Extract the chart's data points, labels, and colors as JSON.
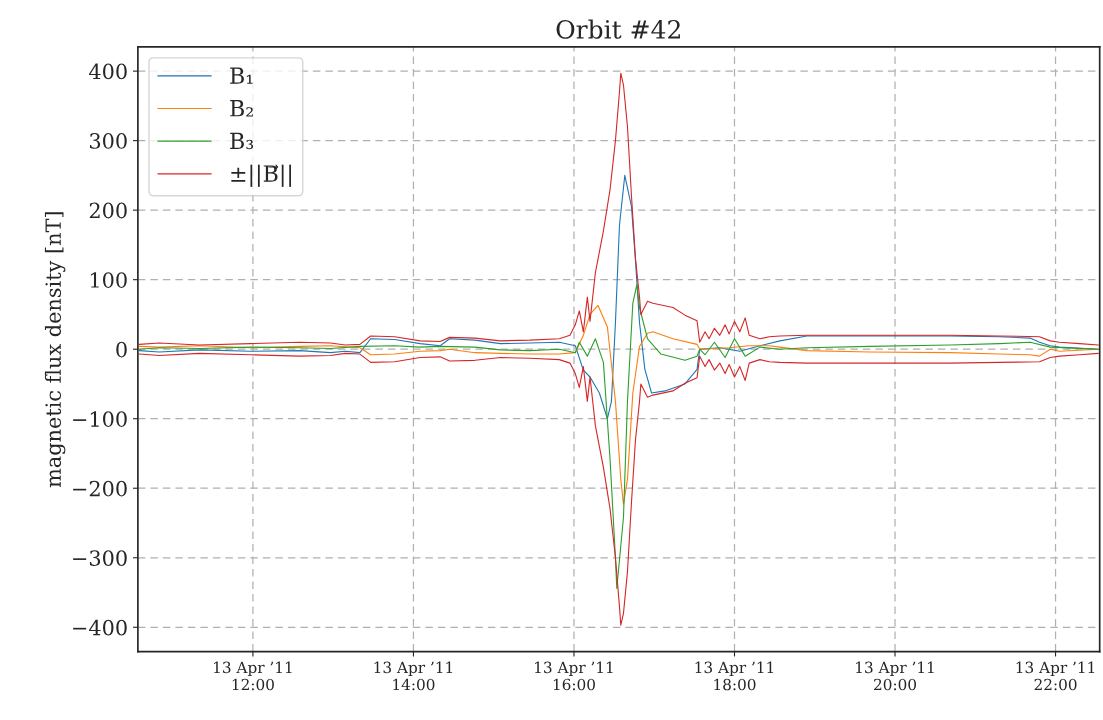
{
  "chart_data": {
    "type": "line",
    "title": "Orbit #42",
    "ylabel": "magnetic flux density [nT]",
    "xlim": [
      "2011-04-13T10:34",
      "2011-04-13T22:33"
    ],
    "ylim": [
      -435,
      435
    ],
    "xticks": [
      {
        "value": "2011-04-13T12:00",
        "label": "13 Apr ’11\n12:00"
      },
      {
        "value": "2011-04-13T14:00",
        "label": "13 Apr ’11\n14:00"
      },
      {
        "value": "2011-04-13T16:00",
        "label": "13 Apr ’11\n16:00"
      },
      {
        "value": "2011-04-13T18:00",
        "label": "13 Apr ’11\n18:00"
      },
      {
        "value": "2011-04-13T20:00",
        "label": "13 Apr ’11\n20:00"
      },
      {
        "value": "2011-04-13T22:00",
        "label": "13 Apr ’11\n22:00"
      }
    ],
    "yticks": [
      {
        "value": -400,
        "label": "−400"
      },
      {
        "value": -300,
        "label": "−300"
      },
      {
        "value": -200,
        "label": "−200"
      },
      {
        "value": -100,
        "label": "−100"
      },
      0,
      100,
      200,
      300,
      400
    ],
    "grid": true,
    "legend": "top left",
    "line_style": "solid",
    "series": [
      {
        "name": "B₁",
        "color": "#1f77b4",
        "x": [
          "2011-04-13T10:35",
          "2011-04-13T10:50",
          "2011-04-13T11:20",
          "2011-04-13T11:58",
          "2011-04-13T12:35",
          "2011-04-13T12:58",
          "2011-04-13T13:09",
          "2011-04-13T13:20",
          "2011-04-13T13:28",
          "2011-04-13T13:46",
          "2011-04-13T14:05",
          "2011-04-13T14:20",
          "2011-04-13T14:27",
          "2011-04-13T14:46",
          "2011-04-13T15:05",
          "2011-04-13T15:27",
          "2011-04-13T15:49",
          "2011-04-13T16:01",
          "2011-04-13T16:07",
          "2011-04-13T16:12",
          "2011-04-13T16:19",
          "2011-04-13T16:25",
          "2011-04-13T16:28",
          "2011-04-13T16:31",
          "2011-04-13T16:34",
          "2011-04-13T16:38",
          "2011-04-13T16:43",
          "2011-04-13T16:46",
          "2011-04-13T16:49",
          "2011-04-13T16:53",
          "2011-04-13T16:58",
          "2011-04-13T17:08",
          "2011-04-13T17:23",
          "2011-04-13T17:32",
          "2011-04-13T17:34",
          "2011-04-13T17:49",
          "2011-04-13T18:04",
          "2011-04-13T18:19",
          "2011-04-13T18:34",
          "2011-04-13T18:54",
          "2011-04-13T19:41",
          "2011-04-13T20:41",
          "2011-04-13T21:18",
          "2011-04-13T21:41",
          "2011-04-13T21:48",
          "2011-04-13T21:56",
          "2011-04-13T22:03",
          "2011-04-13T22:32"
        ],
        "values": [
          -2,
          -4,
          -1,
          -3,
          -2,
          -5,
          -3,
          -5,
          15,
          14,
          8,
          5,
          15,
          13,
          8,
          9,
          10,
          5,
          -30,
          -40,
          -63,
          -100,
          -75,
          38,
          178,
          250,
          205,
          127,
          38,
          -29,
          -63,
          -60,
          -50,
          -29,
          0,
          2,
          -3,
          5,
          12,
          19,
          19,
          19,
          18,
          16,
          10,
          5,
          3,
          0
        ]
      },
      {
        "name": "B₂",
        "color": "#ff7f0e",
        "x": [
          "2011-04-13T10:35",
          "2011-04-13T10:50",
          "2011-04-13T11:20",
          "2011-04-13T11:58",
          "2011-04-13T12:35",
          "2011-04-13T12:58",
          "2011-04-13T13:20",
          "2011-04-13T13:28",
          "2011-04-13T13:46",
          "2011-04-13T14:05",
          "2011-04-13T14:20",
          "2011-04-13T14:27",
          "2011-04-13T14:46",
          "2011-04-13T15:05",
          "2011-04-13T15:27",
          "2011-04-13T15:49",
          "2011-04-13T16:01",
          "2011-04-13T16:07",
          "2011-04-13T16:12",
          "2011-04-13T16:18",
          "2011-04-13T16:25",
          "2011-04-13T16:31",
          "2011-04-13T16:35",
          "2011-04-13T16:37",
          "2011-04-13T16:40",
          "2011-04-13T16:44",
          "2011-04-13T16:49",
          "2011-04-13T16:55",
          "2011-04-13T16:59",
          "2011-04-13T17:14",
          "2011-04-13T17:32",
          "2011-04-13T17:34",
          "2011-04-13T17:56",
          "2011-04-13T18:11",
          "2011-04-13T18:26",
          "2011-04-13T18:34",
          "2011-04-13T18:54",
          "2011-04-13T19:41",
          "2011-04-13T20:41",
          "2011-04-13T21:18",
          "2011-04-13T21:41",
          "2011-04-13T21:48",
          "2011-04-13T21:56",
          "2011-04-13T22:03",
          "2011-04-13T22:32"
        ],
        "values": [
          4,
          3,
          5,
          2,
          4,
          5,
          2,
          -8,
          -7,
          -3,
          -2,
          0,
          -5,
          -6,
          -7,
          -7,
          -5,
          20,
          50,
          63,
          32,
          -75,
          -187,
          -223,
          -187,
          -63,
          4,
          23,
          25,
          15,
          7,
          0,
          2,
          5,
          5,
          3,
          -2,
          -4,
          -5,
          -7,
          -8,
          -10,
          0,
          -3,
          0
        ]
      },
      {
        "name": "B₃",
        "color": "#2ca02c",
        "x": [
          "2011-04-13T10:35",
          "2011-04-13T10:50",
          "2011-04-13T11:20",
          "2011-04-13T11:58",
          "2011-04-13T12:35",
          "2011-04-13T12:58",
          "2011-04-13T13:20",
          "2011-04-13T13:46",
          "2011-04-13T14:05",
          "2011-04-13T14:20",
          "2011-04-13T14:46",
          "2011-04-13T15:05",
          "2011-04-13T15:27",
          "2011-04-13T15:49",
          "2011-04-13T16:01",
          "2011-04-13T16:04",
          "2011-04-13T16:10",
          "2011-04-13T16:16",
          "2011-04-13T16:22",
          "2011-04-13T16:27",
          "2011-04-13T16:31",
          "2011-04-13T16:32",
          "2011-04-13T16:37",
          "2011-04-13T16:40",
          "2011-04-13T16:44",
          "2011-04-13T16:47",
          "2011-04-13T16:49",
          "2011-04-13T16:55",
          "2011-04-13T17:05",
          "2011-04-13T17:23",
          "2011-04-13T17:32",
          "2011-04-13T17:34",
          "2011-04-13T17:38",
          "2011-04-13T17:45",
          "2011-04-13T17:53",
          "2011-04-13T18:00",
          "2011-04-13T18:08",
          "2011-04-13T18:19",
          "2011-04-13T18:34",
          "2011-04-13T18:54",
          "2011-04-13T19:41",
          "2011-04-13T20:41",
          "2011-04-13T21:18",
          "2011-04-13T21:41",
          "2011-04-13T21:56",
          "2011-04-13T22:32"
        ],
        "values": [
          0,
          2,
          1,
          3,
          2,
          1,
          4,
          5,
          3,
          4,
          3,
          -1,
          -2,
          0,
          -5,
          10,
          -10,
          15,
          -19,
          -159,
          -300,
          -344,
          -242,
          -75,
          66,
          93,
          60,
          15,
          -7,
          -16,
          -10,
          0,
          -8,
          10,
          -12,
          15,
          -10,
          3,
          0,
          2,
          4,
          6,
          8,
          10,
          3,
          0
        ]
      },
      {
        "name": "±||B⃗||",
        "color": "#d62728",
        "x": [
          "2011-04-13T10:35",
          "2011-04-13T10:50",
          "2011-04-13T11:20",
          "2011-04-13T11:58",
          "2011-04-13T12:35",
          "2011-04-13T12:58",
          "2011-04-13T13:09",
          "2011-04-13T13:20",
          "2011-04-13T13:28",
          "2011-04-13T13:46",
          "2011-04-13T14:05",
          "2011-04-13T14:20",
          "2011-04-13T14:27",
          "2011-04-13T14:46",
          "2011-04-13T15:05",
          "2011-04-13T15:27",
          "2011-04-13T15:49",
          "2011-04-13T15:57",
          "2011-04-13T16:01",
          "2011-04-13T16:04",
          "2011-04-13T16:07",
          "2011-04-13T16:10",
          "2011-04-13T16:12",
          "2011-04-13T16:16",
          "2011-04-13T16:18",
          "2011-04-13T16:22",
          "2011-04-13T16:27",
          "2011-04-13T16:31",
          "2011-04-13T16:34",
          "2011-04-13T16:35",
          "2011-04-13T16:37",
          "2011-04-13T16:40",
          "2011-04-13T16:43",
          "2011-04-13T16:46",
          "2011-04-13T16:49",
          "2011-04-13T16:50",
          "2011-04-13T16:55",
          "2011-04-13T16:59",
          "2011-04-13T17:14",
          "2011-04-13T17:23",
          "2011-04-13T17:32",
          "2011-04-13T17:34",
          "2011-04-13T17:38",
          "2011-04-13T17:41",
          "2011-04-13T17:45",
          "2011-04-13T17:49",
          "2011-04-13T17:53",
          "2011-04-13T17:56",
          "2011-04-13T18:00",
          "2011-04-13T18:04",
          "2011-04-13T18:08",
          "2011-04-13T18:11",
          "2011-04-13T18:19",
          "2011-04-13T18:26",
          "2011-04-13T18:34",
          "2011-04-13T18:54",
          "2011-04-13T19:41",
          "2011-04-13T20:41",
          "2011-04-13T21:18",
          "2011-04-13T21:48",
          "2011-04-13T21:56",
          "2011-04-13T22:03",
          "2011-04-13T22:18",
          "2011-04-13T22:32"
        ],
        "values": [
          7,
          9,
          6,
          8,
          10,
          9,
          6,
          7,
          19,
          18,
          12,
          11,
          17,
          16,
          12,
          13,
          15,
          20,
          35,
          55,
          25,
          75,
          40,
          110,
          130,
          170,
          230,
          300,
          370,
          397,
          380,
          320,
          220,
          130,
          75,
          50,
          69,
          66,
          60,
          49,
          41,
          10,
          25,
          15,
          30,
          20,
          35,
          22,
          40,
          25,
          45,
          20,
          15,
          18,
          19,
          20,
          20,
          20,
          19,
          18,
          12,
          10,
          8,
          6
        ]
      },
      {
        "color": "#d62728",
        "x": [
          "2011-04-13T10:35",
          "2011-04-13T10:50",
          "2011-04-13T11:20",
          "2011-04-13T11:58",
          "2011-04-13T12:35",
          "2011-04-13T12:58",
          "2011-04-13T13:09",
          "2011-04-13T13:20",
          "2011-04-13T13:28",
          "2011-04-13T13:46",
          "2011-04-13T14:05",
          "2011-04-13T14:20",
          "2011-04-13T14:27",
          "2011-04-13T14:46",
          "2011-04-13T15:05",
          "2011-04-13T15:27",
          "2011-04-13T15:49",
          "2011-04-13T15:57",
          "2011-04-13T16:01",
          "2011-04-13T16:04",
          "2011-04-13T16:07",
          "2011-04-13T16:10",
          "2011-04-13T16:12",
          "2011-04-13T16:16",
          "2011-04-13T16:18",
          "2011-04-13T16:22",
          "2011-04-13T16:27",
          "2011-04-13T16:31",
          "2011-04-13T16:34",
          "2011-04-13T16:35",
          "2011-04-13T16:37",
          "2011-04-13T16:40",
          "2011-04-13T16:43",
          "2011-04-13T16:46",
          "2011-04-13T16:49",
          "2011-04-13T16:50",
          "2011-04-13T16:55",
          "2011-04-13T16:59",
          "2011-04-13T17:14",
          "2011-04-13T17:23",
          "2011-04-13T17:32",
          "2011-04-13T17:34",
          "2011-04-13T17:38",
          "2011-04-13T17:41",
          "2011-04-13T17:45",
          "2011-04-13T17:49",
          "2011-04-13T17:53",
          "2011-04-13T17:56",
          "2011-04-13T18:00",
          "2011-04-13T18:04",
          "2011-04-13T18:08",
          "2011-04-13T18:11",
          "2011-04-13T18:19",
          "2011-04-13T18:26",
          "2011-04-13T18:34",
          "2011-04-13T18:54",
          "2011-04-13T19:41",
          "2011-04-13T20:41",
          "2011-04-13T21:18",
          "2011-04-13T21:48",
          "2011-04-13T21:56",
          "2011-04-13T22:03",
          "2011-04-13T22:18",
          "2011-04-13T22:32"
        ],
        "values": [
          -7,
          -9,
          -6,
          -8,
          -10,
          -9,
          -6,
          -7,
          -19,
          -18,
          -12,
          -11,
          -17,
          -16,
          -12,
          -13,
          -15,
          -20,
          -35,
          -55,
          -25,
          -75,
          -40,
          -110,
          -130,
          -170,
          -230,
          -300,
          -370,
          -397,
          -380,
          -320,
          -220,
          -130,
          -75,
          -50,
          -69,
          -66,
          -60,
          -49,
          -41,
          -10,
          -25,
          -15,
          -30,
          -20,
          -35,
          -22,
          -40,
          -25,
          -45,
          -20,
          -15,
          -18,
          -19,
          -20,
          -20,
          -20,
          -19,
          -18,
          -12,
          -10,
          -8,
          -6
        ]
      }
    ]
  }
}
